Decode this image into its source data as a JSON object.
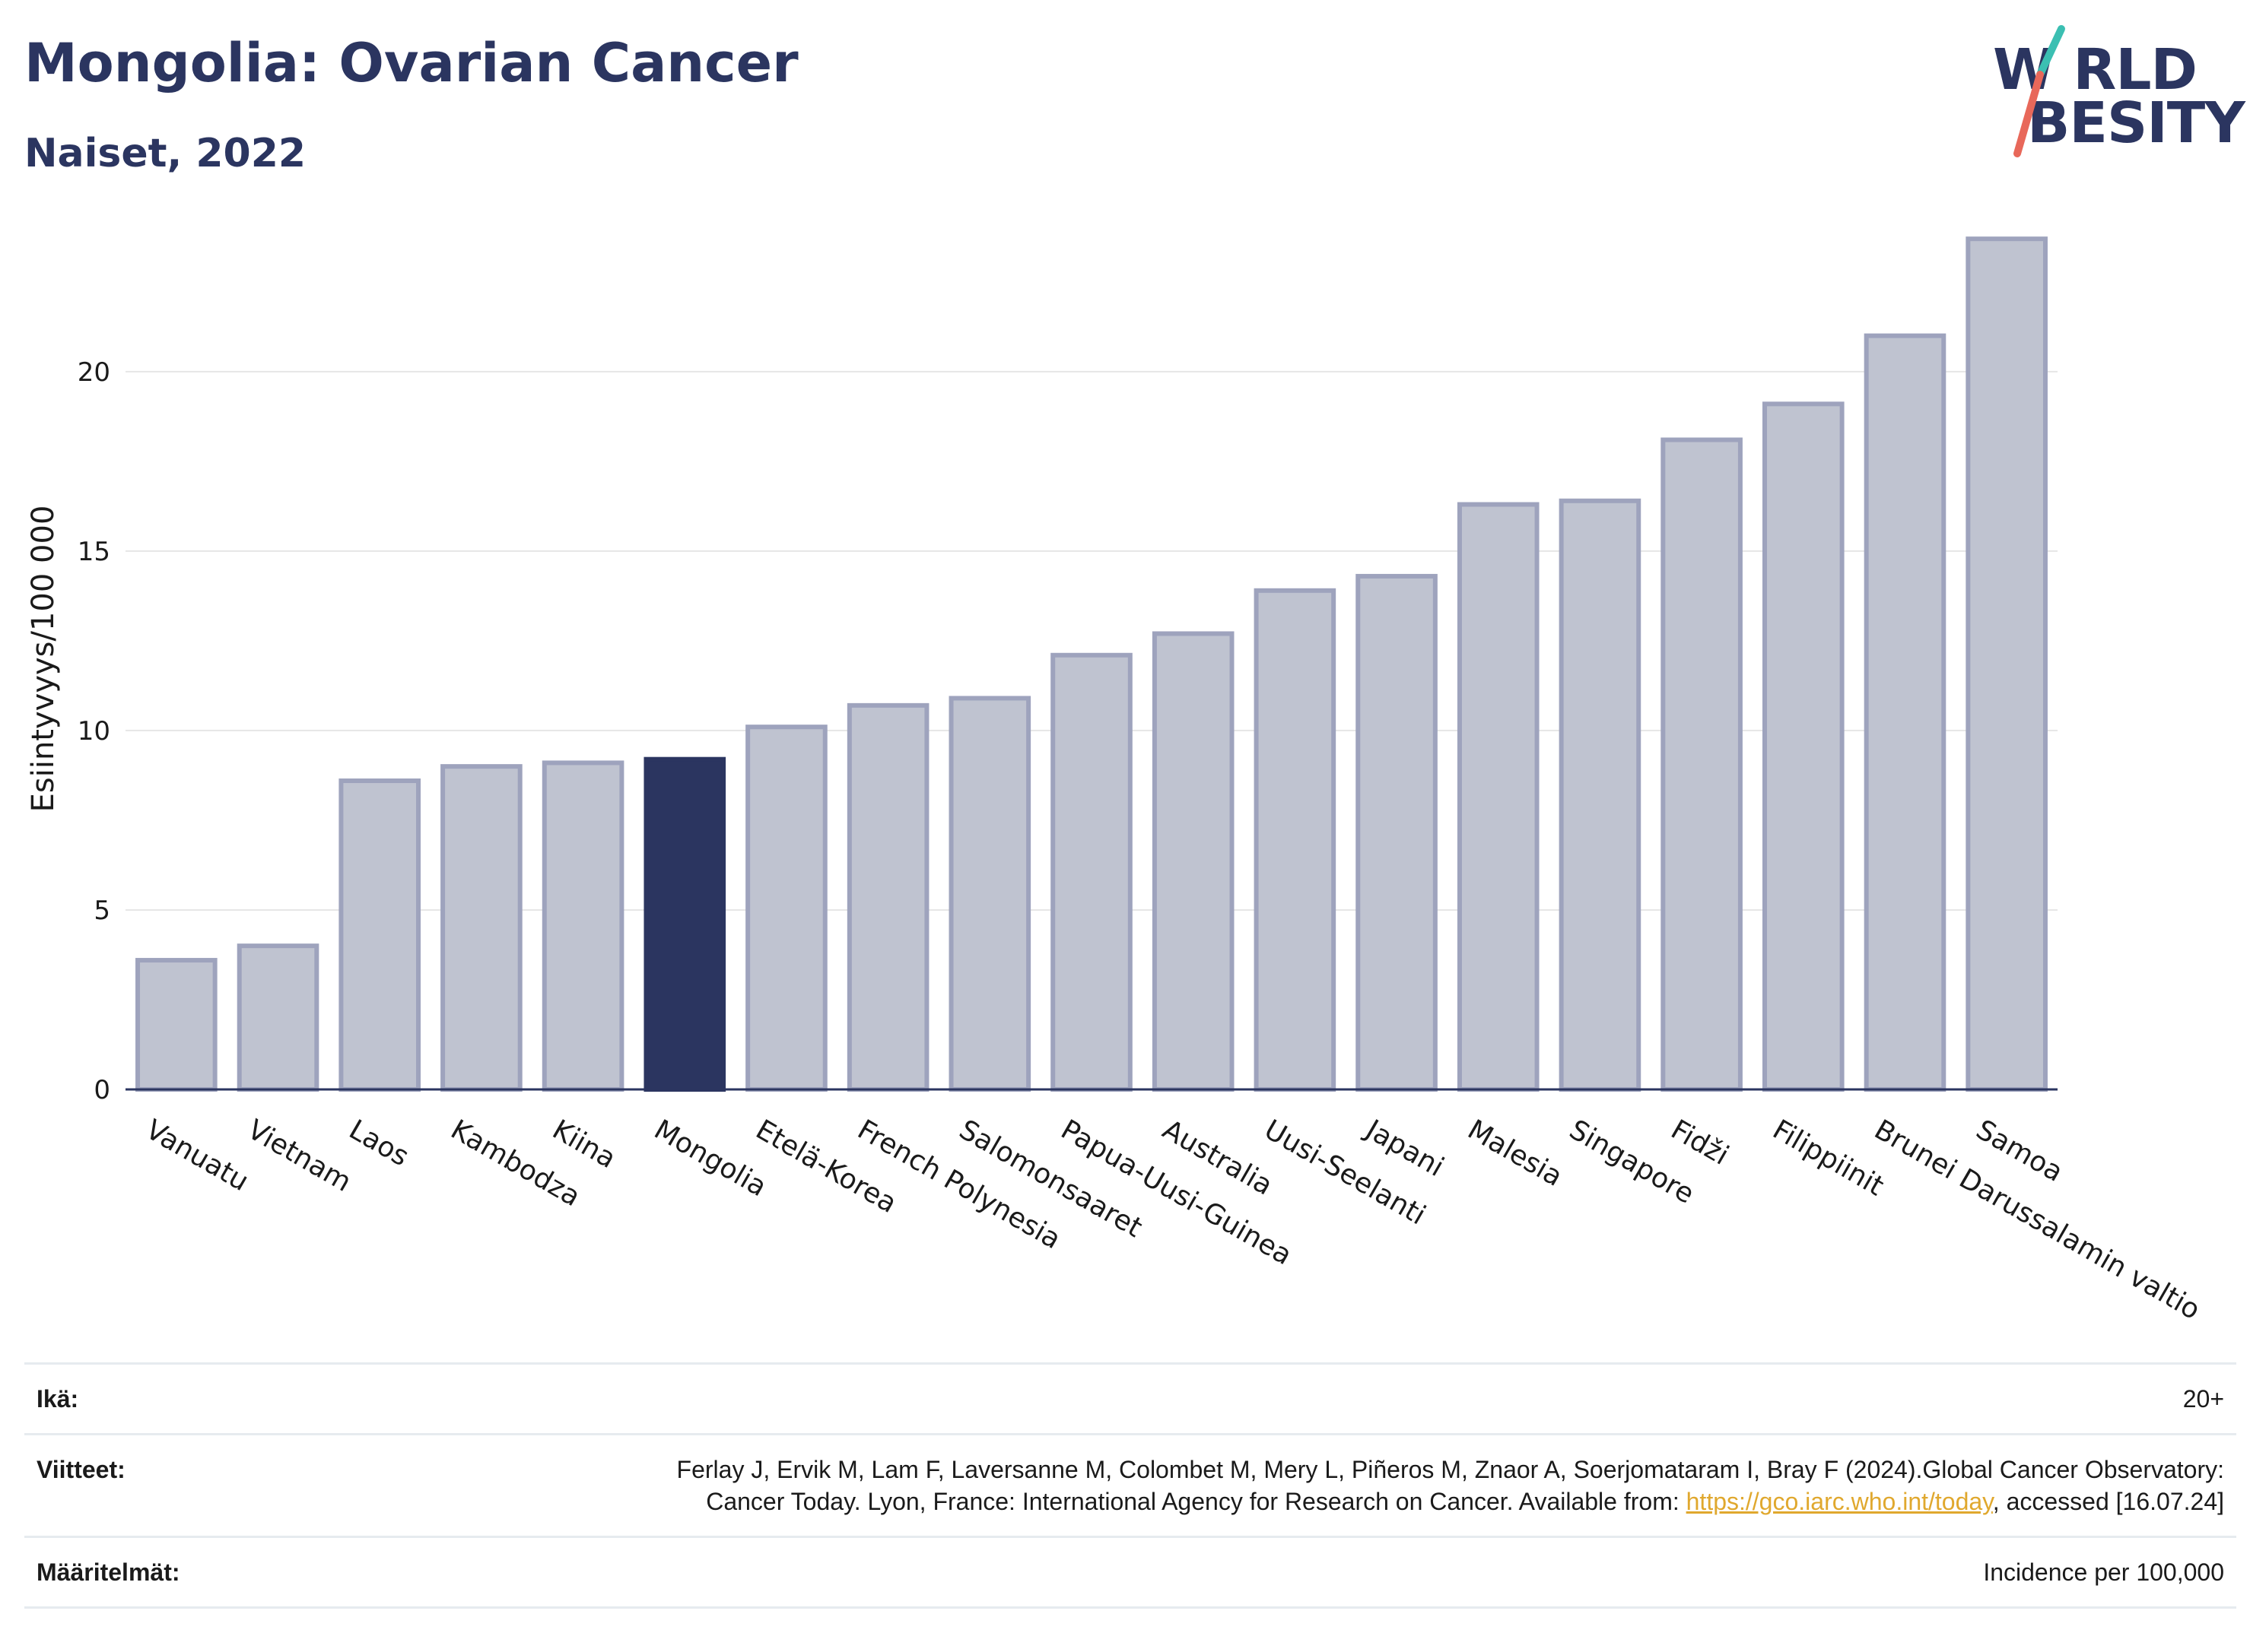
{
  "header": {
    "title": "Mongolia: Ovarian Cancer",
    "subtitle": "Naiset, 2022"
  },
  "logo": {
    "line1": "W RLD",
    "line2": "BESITY",
    "colors": {
      "text": "#2b3560",
      "slash_teal": "#3bbfb2",
      "slash_coral": "#e8685a"
    }
  },
  "chart_data": {
    "type": "bar",
    "title": "",
    "xlabel": "",
    "ylabel": "Esiintyvyys/100 000",
    "ylim": [
      0,
      24
    ],
    "yticks": [
      0,
      5,
      10,
      15,
      20
    ],
    "grid": true,
    "highlight": "Mongolia",
    "colors": {
      "bar": "#bfc3d0",
      "bar_border": "#9ea3bd",
      "highlight": "#2b3560",
      "grid": "#e6e6e6",
      "axis": "#2b3560"
    },
    "categories": [
      "Vanuatu",
      "Vietnam",
      "Laos",
      "Kambodza",
      "Kiina",
      "Mongolia",
      "Etelä-Korea",
      "French Polynesia",
      "Salomonsaaret",
      "Papua-Uusi-Guinea",
      "Australia",
      "Uusi-Seelanti",
      "Japani",
      "Malesia",
      "Singapore",
      "Fidži",
      "Filippiinit",
      "Brunei Darussalamin valtio",
      "Samoa"
    ],
    "values": [
      3.6,
      4.0,
      8.6,
      9.0,
      9.1,
      9.2,
      10.1,
      10.7,
      10.9,
      12.1,
      12.7,
      13.9,
      14.3,
      16.3,
      16.4,
      18.1,
      19.1,
      21.0,
      23.7
    ]
  },
  "footer": {
    "age_label": "Ikä:",
    "age_value": "20+",
    "refs_label": "Viitteet:",
    "refs_text": "Ferlay J, Ervik M, Lam F, Laversanne M, Colombet M, Mery L, Piñeros M, Znaor A, Soerjomataram I, Bray F (2024).Global Cancer Observatory: Cancer Today. Lyon, France: International Agency for Research on Cancer. Available from: ",
    "refs_link": "https://gco.iarc.who.int/today",
    "refs_tail": ", accessed [16.07.24]",
    "defs_label": "Määritelmät:",
    "defs_value": "Incidence per 100,000"
  }
}
